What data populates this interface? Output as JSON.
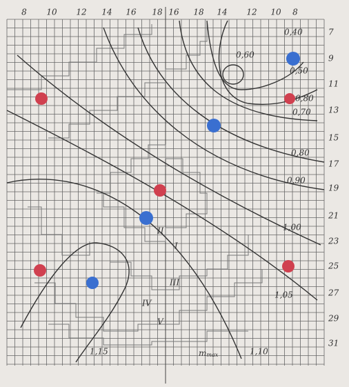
{
  "top_axis": {
    "labels": [
      "8",
      "10",
      "12",
      "14",
      "16",
      "18",
      "16",
      "18",
      "14",
      "12",
      "10",
      "8"
    ]
  },
  "right_axis": {
    "labels": [
      "7",
      "9",
      "11",
      "13",
      "15",
      "17",
      "19",
      "21",
      "23",
      "25",
      "27",
      "29",
      "31"
    ]
  },
  "contour_labels": [
    "0,40",
    "0,50",
    "0,60",
    "0,80",
    "0,70",
    "0,80",
    "0,90",
    "1,00",
    "1,05",
    "1,10",
    "1,15"
  ],
  "zone_labels": [
    "I",
    "II",
    "III",
    "IV",
    "V"
  ],
  "annotation": {
    "main": "m",
    "sub": "max"
  }
}
